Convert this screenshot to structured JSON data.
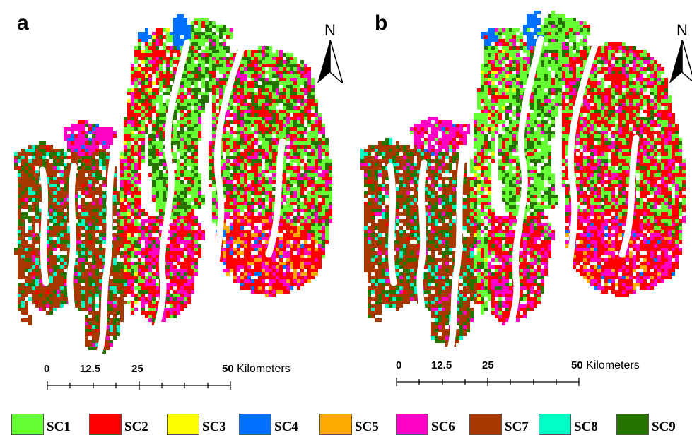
{
  "panels": [
    {
      "letter": "a",
      "north": "N",
      "scale": {
        "ticks": [
          "0",
          "12.5",
          "25",
          "50"
        ],
        "unit": "Kilometers"
      }
    },
    {
      "letter": "b",
      "north": "N",
      "scale": {
        "ticks": [
          "0",
          "12.5",
          "25",
          "50"
        ],
        "unit": "Kilometers"
      }
    }
  ],
  "legend": [
    {
      "label": "SC1",
      "color": "#66ff33"
    },
    {
      "label": "SC2",
      "color": "#ff0000"
    },
    {
      "label": "SC3",
      "color": "#ffff00"
    },
    {
      "label": "SC4",
      "color": "#0070ff"
    },
    {
      "label": "SC5",
      "color": "#ffaa00"
    },
    {
      "label": "SC6",
      "color": "#ff00c5"
    },
    {
      "label": "SC7",
      "color": "#a83800"
    },
    {
      "label": "SC8",
      "color": "#00ffc5"
    },
    {
      "label": "SC9",
      "color": "#267300"
    }
  ]
}
